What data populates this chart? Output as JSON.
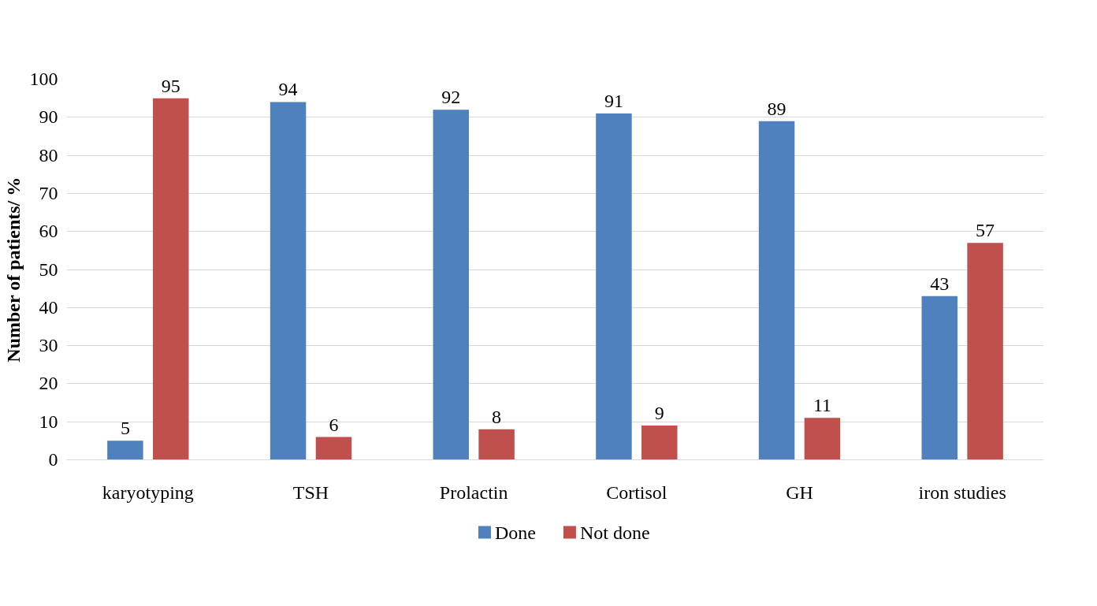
{
  "chart_data": {
    "type": "bar",
    "ylabel": "Number of patients/ %",
    "categories": [
      "karyotyping",
      "TSH",
      "Prolactin",
      "Cortisol",
      "GH",
      "iron studies"
    ],
    "series": [
      {
        "name": "Done",
        "color": "#4f81bd",
        "values": [
          5,
          94,
          92,
          91,
          89,
          43
        ]
      },
      {
        "name": "Not done",
        "color": "#c0504d",
        "values": [
          95,
          6,
          8,
          9,
          11,
          57
        ]
      }
    ],
    "ylim": [
      0,
      100
    ],
    "yticks": [
      0,
      10,
      20,
      30,
      40,
      50,
      60,
      70,
      80,
      90,
      100
    ],
    "grid": "y",
    "legend": "bottom",
    "data_labels": true
  }
}
